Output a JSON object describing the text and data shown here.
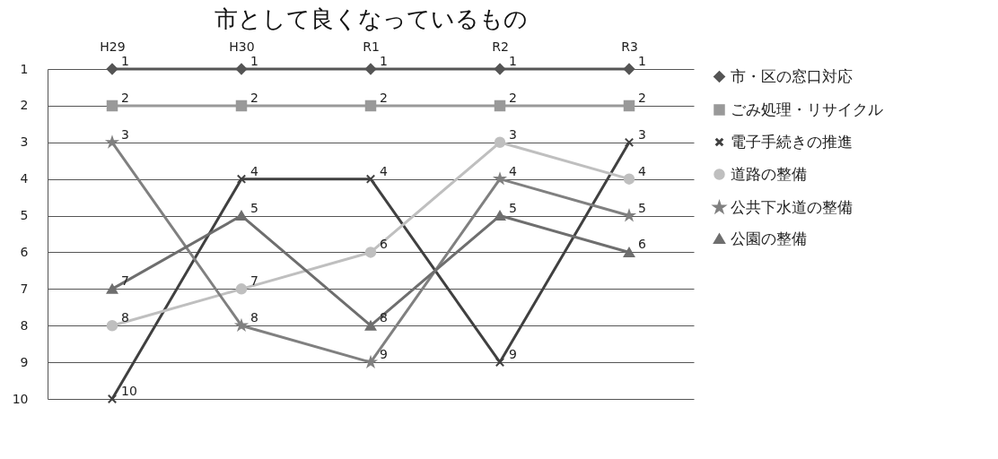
{
  "chart_data": {
    "type": "line",
    "title": "市として良くなっているもの",
    "categories": [
      "H29",
      "H30",
      "R1",
      "R2",
      "R3"
    ],
    "series": [
      {
        "name": "市・区の窓口対応",
        "color": "#555555",
        "marker": "diamond",
        "values": [
          1,
          1,
          1,
          1,
          1
        ]
      },
      {
        "name": "ごみ処理・リサイクル",
        "color": "#999999",
        "marker": "square",
        "values": [
          2,
          2,
          2,
          2,
          2
        ]
      },
      {
        "name": "電子手続きの推進",
        "color": "#404040",
        "marker": "cross",
        "values": [
          10,
          4,
          4,
          9,
          3
        ]
      },
      {
        "name": "道路の整備",
        "color": "#bfbfbf",
        "marker": "circle",
        "values": [
          8,
          7,
          6,
          3,
          4
        ]
      },
      {
        "name": "公共下水道の整備",
        "color": "#808080",
        "marker": "star",
        "values": [
          3,
          8,
          9,
          4,
          5
        ]
      },
      {
        "name": "公園の整備",
        "color": "#6e6e6e",
        "marker": "triangle",
        "values": [
          7,
          5,
          8,
          5,
          6
        ]
      }
    ],
    "ylim": [
      10,
      1
    ],
    "yticks": [
      1,
      2,
      3,
      4,
      5,
      6,
      7,
      8,
      9,
      10
    ],
    "grid": "y",
    "legend": "right",
    "data_labels": true
  }
}
